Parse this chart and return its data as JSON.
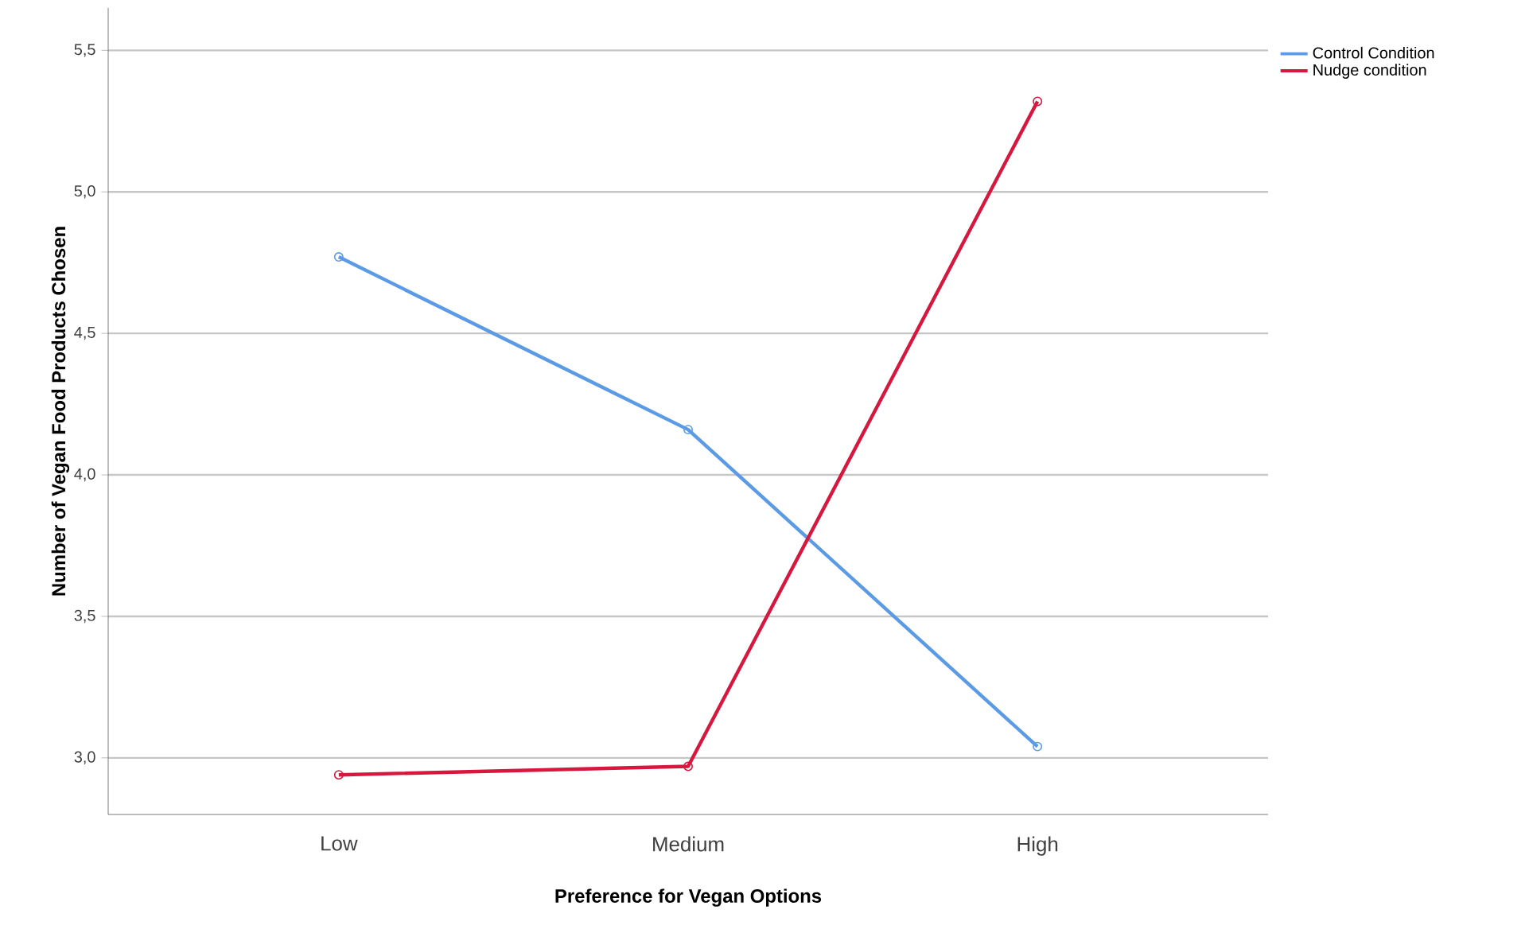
{
  "chart_data": {
    "type": "line",
    "xlabel": "Preference for Vegan Options",
    "ylabel": "Number of Vegan Food Products Chosen",
    "categories": [
      "Low",
      "Medium",
      "High"
    ],
    "series": [
      {
        "name": "Control Condition",
        "color": "#5b9be6",
        "values": [
          4.77,
          4.16,
          3.04
        ]
      },
      {
        "name": "Nudge condition",
        "color": "#d8173f",
        "values": [
          2.94,
          2.97,
          5.32
        ]
      }
    ],
    "ylim": [
      2.8,
      5.65
    ],
    "yticks": [
      {
        "value": 3.0,
        "label": "3,0"
      },
      {
        "value": 3.5,
        "label": "3,5"
      },
      {
        "value": 4.0,
        "label": "4,0"
      },
      {
        "value": 4.5,
        "label": "4,5"
      },
      {
        "value": 5.0,
        "label": "5,0"
      },
      {
        "value": 5.5,
        "label": "5,5"
      }
    ],
    "grid": "y",
    "legend": "top right",
    "marker": "circle",
    "line_style": "solid"
  }
}
